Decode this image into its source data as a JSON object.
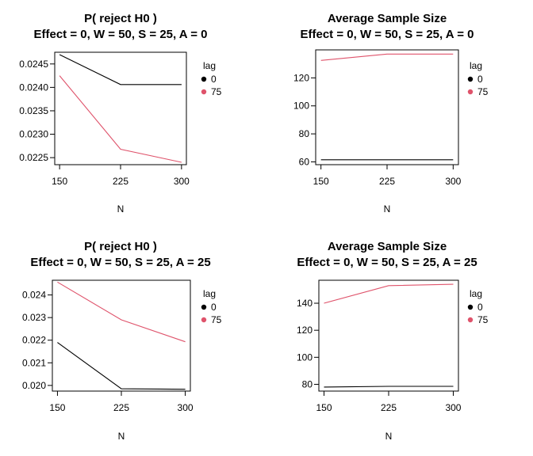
{
  "chart_data": [
    {
      "type": "line",
      "title": "P( reject H0 )",
      "subtitle": "Effect = 0, W = 50, S = 25, A = 0",
      "xlabel": "N",
      "ylabel": "",
      "x": [
        150,
        225,
        300
      ],
      "x_ticks": [
        "150",
        "225",
        "300"
      ],
      "ylim": [
        0.02235,
        0.02475
      ],
      "y_ticks": [
        0.0225,
        0.023,
        0.0235,
        0.024,
        0.0245
      ],
      "y_tick_labels": [
        "0.0225",
        "0.0230",
        "0.0235",
        "0.0240",
        "0.0245"
      ],
      "legend_title": "lag",
      "legend_position": "right",
      "series": [
        {
          "name": "0",
          "color": "#000000",
          "values": [
            0.0247,
            0.02406,
            0.02406
          ]
        },
        {
          "name": "75",
          "color": "#DF536B",
          "values": [
            0.02425,
            0.02268,
            0.0224
          ]
        }
      ]
    },
    {
      "type": "line",
      "title": "Average Sample Size",
      "subtitle": "Effect = 0, W = 50, S = 25, A = 0",
      "xlabel": "N",
      "ylabel": "",
      "x": [
        150,
        225,
        300
      ],
      "x_ticks": [
        "150",
        "225",
        "300"
      ],
      "ylim": [
        58,
        140
      ],
      "y_ticks": [
        60,
        80,
        100,
        120
      ],
      "y_tick_labels": [
        "60",
        "80",
        "100",
        "120"
      ],
      "legend_title": "lag",
      "legend_position": "right",
      "series": [
        {
          "name": "0",
          "color": "#000000",
          "values": [
            61.5,
            61.5,
            61.5
          ]
        },
        {
          "name": "75",
          "color": "#DF536B",
          "values": [
            132.5,
            137,
            137
          ]
        }
      ]
    },
    {
      "type": "line",
      "title": "P( reject H0 )",
      "subtitle": "Effect = 0, W = 50, S = 25, A = 25",
      "xlabel": "N",
      "ylabel": "",
      "x": [
        150,
        225,
        300
      ],
      "x_ticks": [
        "150",
        "225",
        "300"
      ],
      "ylim": [
        0.01975,
        0.02465
      ],
      "y_ticks": [
        0.02,
        0.021,
        0.022,
        0.023,
        0.024
      ],
      "y_tick_labels": [
        "0.020",
        "0.021",
        "0.022",
        "0.023",
        "0.024"
      ],
      "legend_title": "lag",
      "legend_position": "right",
      "series": [
        {
          "name": "0",
          "color": "#000000",
          "values": [
            0.0219,
            0.01985,
            0.01983
          ]
        },
        {
          "name": "75",
          "color": "#DF536B",
          "values": [
            0.02457,
            0.0229,
            0.02193
          ]
        }
      ]
    },
    {
      "type": "line",
      "title": "Average Sample Size",
      "subtitle": "Effect = 0, W = 50, S = 25, A = 25",
      "xlabel": "N",
      "ylabel": "",
      "x": [
        150,
        225,
        300
      ],
      "x_ticks": [
        "150",
        "225",
        "300"
      ],
      "ylim": [
        75,
        157
      ],
      "y_ticks": [
        80,
        100,
        120,
        140
      ],
      "y_tick_labels": [
        "80",
        "100",
        "120",
        "140"
      ],
      "legend_title": "lag",
      "legend_position": "right",
      "series": [
        {
          "name": "0",
          "color": "#000000",
          "values": [
            78,
            78.5,
            78.5
          ]
        },
        {
          "name": "75",
          "color": "#DF536B",
          "values": [
            140,
            153,
            154
          ]
        }
      ]
    }
  ]
}
